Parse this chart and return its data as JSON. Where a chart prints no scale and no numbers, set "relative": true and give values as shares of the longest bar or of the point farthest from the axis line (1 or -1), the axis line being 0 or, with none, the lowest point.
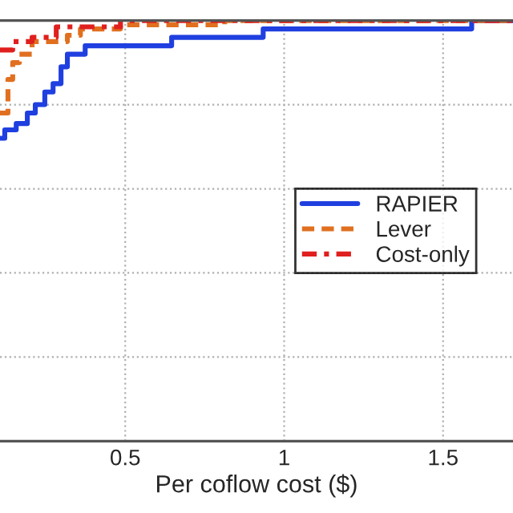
{
  "chart_data": {
    "type": "step",
    "xlabel": "Per coflow cost ($)",
    "relative": true,
    "xlim": [
      0.106,
      1.72
    ],
    "xticks": [
      0.5,
      1,
      1.5
    ],
    "grid": true,
    "legend": "right",
    "series": [
      {
        "name": "RAPIER",
        "color": "#1f3fe0",
        "line_style": "solid",
        "x": [
          0.106,
          0.121,
          0.157,
          0.192,
          0.217,
          0.247,
          0.273,
          0.298,
          0.318,
          0.374,
          0.646,
          0.934,
          1.59,
          1.72
        ],
        "values": [
          0.72,
          0.74,
          0.755,
          0.78,
          0.8,
          0.83,
          0.85,
          0.89,
          0.92,
          0.94,
          0.96,
          0.98,
          1.0,
          1.0
        ]
      },
      {
        "name": "Lever",
        "color": "#e07020",
        "line_style": "dashed",
        "x": [
          0.106,
          0.131,
          0.146,
          0.167,
          0.207,
          0.318,
          0.359,
          0.485,
          0.813,
          1.72
        ],
        "values": [
          0.78,
          0.86,
          0.9,
          0.92,
          0.95,
          0.965,
          0.98,
          0.99,
          1.0,
          1.0
        ]
      },
      {
        "name": "Cost-only",
        "color": "#e0201e",
        "line_style": "dashdot",
        "x": [
          0.106,
          0.146,
          0.207,
          0.283,
          0.485,
          1.72
        ],
        "values": [
          0.93,
          0.95,
          0.96,
          0.985,
          1.0,
          1.0
        ]
      }
    ]
  }
}
